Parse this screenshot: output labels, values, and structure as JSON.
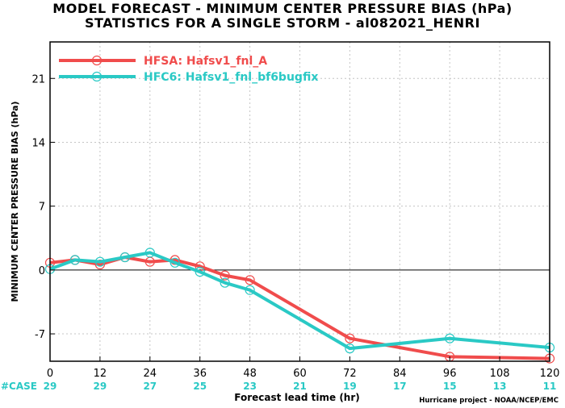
{
  "title_line1": "MODEL FORECAST - MINIMUM CENTER PRESSURE BIAS (hPa)",
  "title_line2": "STATISTICS FOR A SINGLE STORM - al082021_HENRI",
  "credit": "Hurricane project - NOAA/NCEP/EMC",
  "colors": {
    "HFSA": "#f04c4c",
    "HFC6": "#2ac9c5"
  },
  "chart_data": {
    "type": "line",
    "title": "MODEL FORECAST - MINIMUM CENTER PRESSURE BIAS (hPa)",
    "subtitle": "STATISTICS FOR A SINGLE STORM - al082021_HENRI",
    "xlabel": "Forecast lead time (hr)",
    "ylabel": "MINIMUM CENTER PRESSURE BIAS (hPa)",
    "xlim": [
      0,
      120
    ],
    "ylim": [
      -10,
      25
    ],
    "xticks": [
      0,
      12,
      24,
      36,
      48,
      60,
      72,
      84,
      96,
      108,
      120
    ],
    "yticks": [
      -7,
      0,
      7,
      14,
      21
    ],
    "grid": true,
    "legend_position": "top-left",
    "case_label": "#CASE",
    "case_counts": [
      29,
      29,
      27,
      25,
      23,
      21,
      19,
      17,
      15,
      13,
      11
    ],
    "series": [
      {
        "name": "HFSA: Hafsv1_fnl_A",
        "x": [
          0,
          6,
          12,
          18,
          24,
          30,
          36,
          42,
          48,
          72,
          96,
          120
        ],
        "y": [
          0.8,
          1.1,
          0.6,
          1.4,
          0.9,
          1.1,
          0.4,
          -0.6,
          -1.1,
          -7.5,
          -9.5,
          -9.7
        ]
      },
      {
        "name": "HFC6: Hafsv1_fnl_bf6bugfix",
        "x": [
          0,
          6,
          12,
          18,
          24,
          30,
          36,
          42,
          48,
          72,
          96,
          120
        ],
        "y": [
          0.1,
          1.1,
          0.9,
          1.4,
          1.9,
          0.8,
          -0.2,
          -1.4,
          -2.2,
          -8.6,
          -7.5,
          -8.5
        ]
      }
    ]
  }
}
